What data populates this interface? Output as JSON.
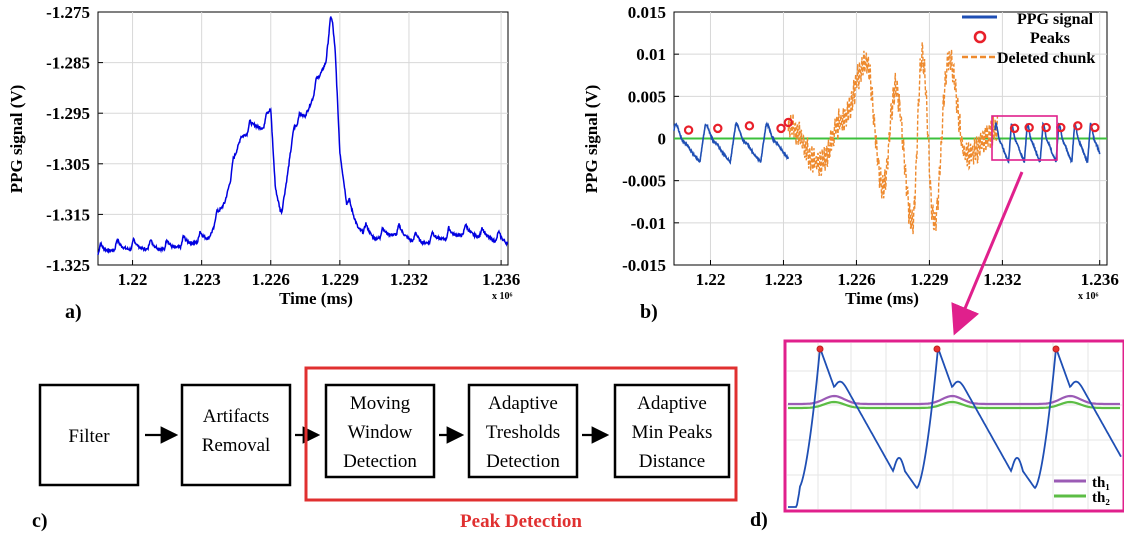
{
  "colors": {
    "signal": "#0000e0",
    "ppg_signal": "#1f4fb4",
    "deleted": "#ee8a2e",
    "peaks": "#e8202a",
    "baseline": "#3cc03c",
    "highlight": "#e0208c",
    "peak_box": "#e03030",
    "th1": "#9b5bb5",
    "th2": "#5cbd45",
    "grid": "#d8d8d8"
  },
  "panel_a": {
    "label": "a)",
    "ylabel": "PPG signal (V)",
    "xlabel": "Time (ms)",
    "x_multiplier": "x 10⁶",
    "yticks": [
      "-1.275",
      "-1.285",
      "-1.295",
      "-1.305",
      "-1.315",
      "-1.325"
    ],
    "xticks": [
      "1.22",
      "1.223",
      "1.226",
      "1.229",
      "1.232",
      "1.236"
    ]
  },
  "panel_b": {
    "label": "b)",
    "ylabel": "PPG signal (V)",
    "xlabel": "Time (ms)",
    "x_multiplier": "x 10⁶",
    "yticks": [
      "0.015",
      "0.01",
      "0.005",
      "0",
      "-0.005",
      "-0.01",
      "-0.015"
    ],
    "xticks": [
      "1.22",
      "1.223",
      "1.226",
      "1.229",
      "1.232",
      "1.236"
    ],
    "legend": [
      "PPG signal",
      "Peaks",
      "Deleted chunk"
    ]
  },
  "panel_c": {
    "label": "c)",
    "boxes": [
      [
        "Filter"
      ],
      [
        "Artifacts",
        "Removal"
      ],
      [
        "Moving",
        "Window",
        "Detection"
      ],
      [
        "Adaptive",
        "Tresholds",
        "Detection"
      ],
      [
        "Adaptive",
        "Min Peaks",
        "Distance"
      ]
    ],
    "group_label": "Peak Detection"
  },
  "panel_d": {
    "label": "d)",
    "legend": [
      "th₁",
      "th₂"
    ]
  },
  "chart_data": [
    {
      "type": "line",
      "title": "",
      "xlabel": "Time (ms)",
      "ylabel": "PPG signal (V)",
      "x_multiplier": "x 10^6",
      "xlim": [
        1.2185,
        1.2363
      ],
      "ylim": [
        -1.325,
        -1.275
      ],
      "grid": true,
      "series": [
        {
          "x": [
            1.2185,
            1.2193,
            1.2201,
            1.2209,
            1.2217,
            1.2225,
            1.2233,
            1.224,
            1.2247,
            1.2253,
            1.2257,
            1.226,
            1.2262,
            1.2265,
            1.227,
            1.2275,
            1.228,
            1.2284,
            1.2286,
            1.2288,
            1.229,
            1.2293,
            1.2298,
            1.2305,
            1.2315,
            1.2325,
            1.2335,
            1.2345,
            1.2355,
            1.2363
          ],
          "y": [
            -1.323,
            -1.322,
            -1.322,
            -1.322,
            -1.322,
            -1.321,
            -1.32,
            -1.313,
            -1.3,
            -1.298,
            -1.298,
            -1.295,
            -1.31,
            -1.316,
            -1.298,
            -1.296,
            -1.29,
            -1.285,
            -1.276,
            -1.284,
            -1.303,
            -1.313,
            -1.318,
            -1.32,
            -1.319,
            -1.321,
            -1.32,
            -1.319,
            -1.32,
            -1.321
          ]
        }
      ]
    },
    {
      "type": "line",
      "title": "",
      "xlabel": "Time (ms)",
      "ylabel": "PPG signal (V)",
      "x_multiplier": "x 10^6",
      "xlim": [
        1.2185,
        1.2363
      ],
      "ylim": [
        -0.015,
        0.015
      ],
      "grid": true,
      "legend_position": "top-right",
      "series": [
        {
          "name": "PPG signal",
          "x": [
            1.2185,
            1.22,
            1.2215,
            1.223,
            1.2317,
            1.233,
            1.2345,
            1.236
          ],
          "y": [
            -0.001,
            0.001,
            -0.001,
            0.002,
            -0.002,
            0.001,
            -0.001,
            -0.002
          ]
        },
        {
          "name": "Peaks",
          "x": [
            1.2191,
            1.2203,
            1.2216,
            1.2229,
            1.2232,
            1.2325,
            1.2331,
            1.2338,
            1.2344,
            1.2351,
            1.2358
          ],
          "y": [
            0.001,
            0.0012,
            0.0015,
            0.0012,
            0.0019,
            0.0012,
            0.0013,
            0.0013,
            0.0013,
            0.0015,
            0.0013
          ]
        },
        {
          "name": "Deleted chunk",
          "x": [
            1.2232,
            1.2245,
            1.2254,
            1.2264,
            1.2271,
            1.2276,
            1.2283,
            1.2287,
            1.2292,
            1.2298,
            1.2305,
            1.2318
          ],
          "y": [
            0.0015,
            -0.003,
            0.002,
            0.009,
            -0.006,
            0.006,
            -0.01,
            0.0098,
            -0.01,
            0.0095,
            -0.002,
            0.001
          ]
        },
        {
          "name": "",
          "x": [
            1.2185,
            1.2363
          ],
          "y": [
            0.0,
            0.0
          ]
        }
      ]
    }
  ]
}
